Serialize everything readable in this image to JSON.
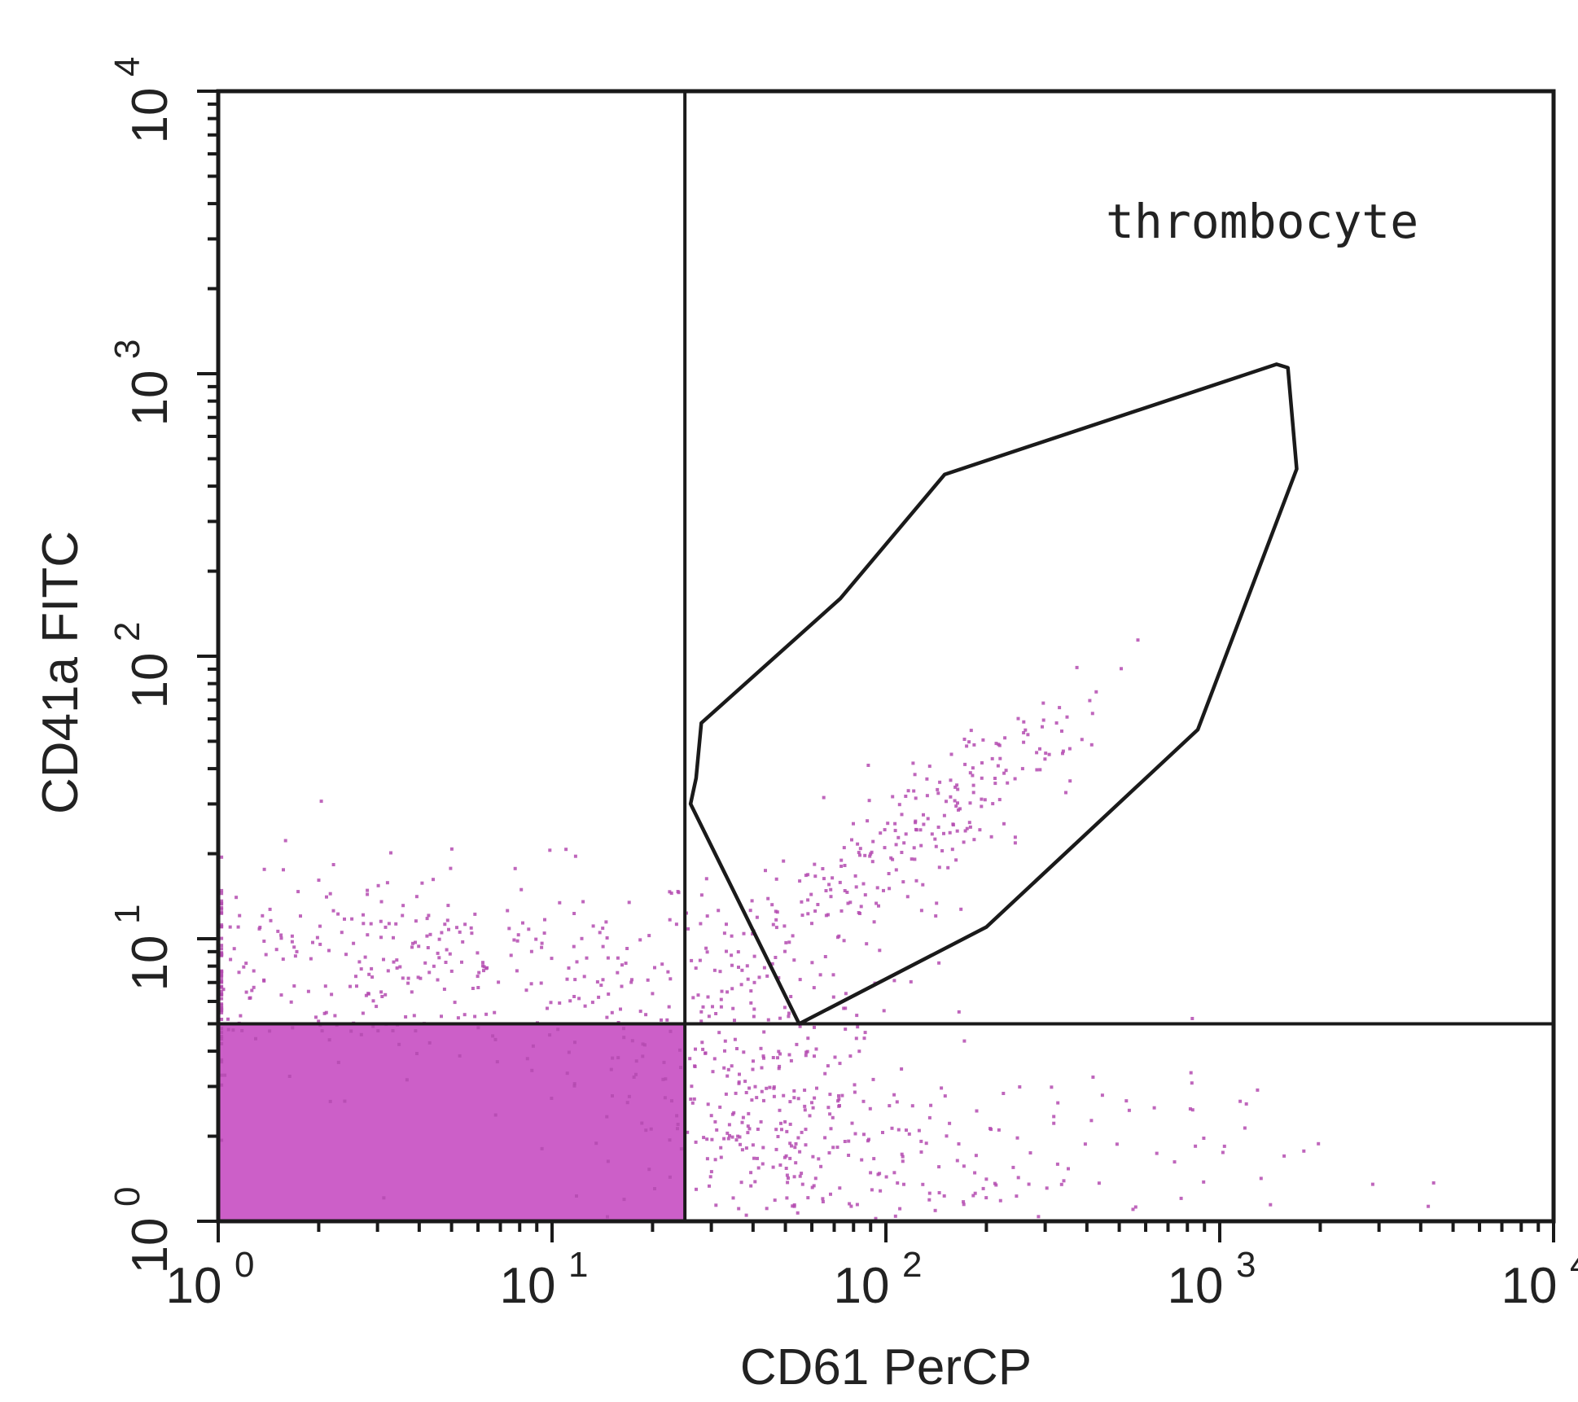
{
  "chart_data": {
    "type": "scatter",
    "subtype": "flow-cytometry-dot-plot",
    "xlabel": "CD61 PerCP",
    "ylabel": "CD41a FITC",
    "x_scale": "log",
    "y_scale": "log",
    "xlim": [
      1,
      10000
    ],
    "ylim": [
      1,
      10000
    ],
    "x_ticks": [
      {
        "value": 1,
        "base": "10",
        "exp": "0"
      },
      {
        "value": 10,
        "base": "10",
        "exp": "1"
      },
      {
        "value": 100,
        "base": "10",
        "exp": "2"
      },
      {
        "value": 1000,
        "base": "10",
        "exp": "3"
      },
      {
        "value": 10000,
        "base": "10",
        "exp": "4"
      }
    ],
    "y_ticks": [
      {
        "value": 1,
        "base": "10",
        "exp": "0"
      },
      {
        "value": 10,
        "base": "10",
        "exp": "1"
      },
      {
        "value": 100,
        "base": "10",
        "exp": "2"
      },
      {
        "value": 1000,
        "base": "10",
        "exp": "3"
      },
      {
        "value": 10000,
        "base": "10",
        "exp": "4"
      }
    ],
    "quadrant_lines": {
      "x": 25,
      "y": 5
    },
    "gate": {
      "label": "thrombocyte",
      "polygon": [
        [
          55,
          5.0
        ],
        [
          200,
          11
        ],
        [
          860,
          55
        ],
        [
          1700,
          460
        ],
        [
          1600,
          1050
        ],
        [
          1480,
          1080
        ],
        [
          150,
          440
        ],
        [
          73,
          160
        ],
        [
          28,
          58
        ],
        [
          27,
          37
        ],
        [
          26,
          30
        ]
      ]
    },
    "dense_region": {
      "x": [
        1,
        25
      ],
      "y": [
        1,
        5
      ],
      "color": "#cc5fc8"
    },
    "populations": [
      {
        "name_visible": false,
        "center": [
          3.5,
          8.0
        ],
        "spread": [
          0.55,
          0.18
        ],
        "count": 380
      },
      {
        "name_visible": false,
        "center": [
          60,
          12
        ],
        "spread": [
          0.32,
          0.28
        ],
        "count": 160
      },
      {
        "name_visible": false,
        "center": [
          170,
          32
        ],
        "spread": [
          0.22,
          0.18
        ],
        "count": 140
      },
      {
        "name_visible": false,
        "center": [
          45,
          2.2
        ],
        "spread": [
          0.22,
          0.25
        ],
        "count": 320
      },
      {
        "name_visible": false,
        "center": [
          250,
          1.6
        ],
        "spread": [
          0.45,
          0.2
        ],
        "count": 130
      }
    ],
    "colors": {
      "dots": "#b44bb0",
      "axis": "#1a1a1a",
      "gate_line": "#1a1a1a"
    },
    "grid": false,
    "legend": "none"
  }
}
